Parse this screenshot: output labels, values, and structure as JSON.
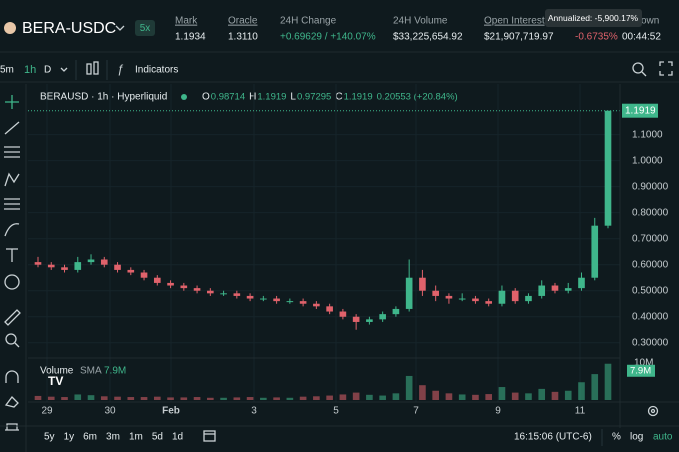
{
  "header": {
    "pair": "BERA-USDC",
    "leverage": "5x",
    "stats": [
      {
        "label": "Mark",
        "value": "1.1934"
      },
      {
        "label": "Oracle",
        "value": "1.3110"
      },
      {
        "label": "24H Change",
        "value": "+0.69629 / +140.07%"
      },
      {
        "label": "24H Volume",
        "value": "$33,225,654.92"
      },
      {
        "label": "Open Interest",
        "value": "$21,907,719.97"
      }
    ],
    "funding_value": "-0.6735%",
    "countdown_label_tail": "own",
    "countdown_value": "00:44:52",
    "tooltip": "Annualized: -5,900.17%"
  },
  "toolbar": {
    "intervals": [
      "5m",
      "1h",
      "D"
    ],
    "indicators": "Indicators"
  },
  "legend": {
    "symbol": "BERAUSD · 1h · Hyperliquid",
    "o_key": "O",
    "o": "0.98714",
    "h_key": "H",
    "h": "1.1919",
    "l_key": "L",
    "l": "0.97295",
    "c_key": "C",
    "c": "1.1919",
    "change": "0.20553 (+20.84%)"
  },
  "chart_data": {
    "type": "candlestick",
    "up_color": "#3fb68b",
    "down_color": "#e0626b",
    "x_labels": [
      "29",
      "30",
      "Feb",
      "3",
      "5",
      "7",
      "9",
      "11"
    ],
    "open": [
      0.61,
      0.6,
      0.59,
      0.58,
      0.61,
      0.62,
      0.6,
      0.58,
      0.57,
      0.55,
      0.53,
      0.52,
      0.51,
      0.5,
      0.49,
      0.49,
      0.48,
      0.47,
      0.47,
      0.46,
      0.46,
      0.45,
      0.44,
      0.42,
      0.4,
      0.38,
      0.39,
      0.41,
      0.43,
      0.55,
      0.5,
      0.48,
      0.47,
      0.47,
      0.46,
      0.45,
      0.5,
      0.46,
      0.48,
      0.52,
      0.5,
      0.51,
      0.55,
      0.75
    ],
    "high": [
      0.63,
      0.61,
      0.6,
      0.63,
      0.64,
      0.63,
      0.61,
      0.59,
      0.58,
      0.56,
      0.54,
      0.53,
      0.52,
      0.51,
      0.5,
      0.5,
      0.49,
      0.48,
      0.48,
      0.47,
      0.47,
      0.46,
      0.45,
      0.43,
      0.41,
      0.4,
      0.42,
      0.44,
      0.62,
      0.58,
      0.52,
      0.49,
      0.49,
      0.48,
      0.47,
      0.52,
      0.51,
      0.49,
      0.54,
      0.53,
      0.53,
      0.57,
      0.78,
      1.1919
    ],
    "low": [
      0.59,
      0.58,
      0.57,
      0.57,
      0.6,
      0.59,
      0.57,
      0.56,
      0.54,
      0.52,
      0.51,
      0.5,
      0.49,
      0.48,
      0.48,
      0.47,
      0.46,
      0.46,
      0.45,
      0.45,
      0.44,
      0.43,
      0.41,
      0.39,
      0.35,
      0.37,
      0.38,
      0.4,
      0.42,
      0.48,
      0.46,
      0.45,
      0.46,
      0.45,
      0.44,
      0.44,
      0.45,
      0.45,
      0.47,
      0.49,
      0.49,
      0.5,
      0.54,
      0.74
    ],
    "close": [
      0.6,
      0.59,
      0.58,
      0.61,
      0.62,
      0.6,
      0.58,
      0.57,
      0.55,
      0.53,
      0.52,
      0.51,
      0.5,
      0.49,
      0.49,
      0.48,
      0.47,
      0.47,
      0.46,
      0.46,
      0.45,
      0.44,
      0.42,
      0.4,
      0.38,
      0.39,
      0.41,
      0.43,
      0.55,
      0.5,
      0.48,
      0.47,
      0.47,
      0.46,
      0.45,
      0.5,
      0.46,
      0.48,
      0.52,
      0.5,
      0.51,
      0.55,
      0.75,
      1.1919
    ],
    "ylim": [
      0.08,
      1.21
    ],
    "yticks": [
      {
        "value": 0.3,
        "label": "0.30000"
      },
      {
        "value": 0.4,
        "label": "0.40000"
      },
      {
        "value": 0.5,
        "label": "0.50000"
      },
      {
        "value": 0.6,
        "label": "0.60000"
      },
      {
        "value": 0.7,
        "label": "0.70000"
      },
      {
        "value": 0.8,
        "label": "0.80000"
      },
      {
        "value": 0.9,
        "label": "0.90000"
      },
      {
        "value": 1.0,
        "label": "1.0000"
      },
      {
        "value": 1.1,
        "label": "1.1000"
      }
    ],
    "volume": {
      "title": "Volume",
      "sma_key": "SMA",
      "sma_value": 7900000,
      "sma_label": "7.9M",
      "values": [
        1100000,
        900000,
        800000,
        1500000,
        1300000,
        1000000,
        900000,
        800000,
        800000,
        900000,
        700000,
        700000,
        800000,
        600000,
        600000,
        700000,
        800000,
        600000,
        700000,
        600000,
        900000,
        1000000,
        1200000,
        1500000,
        2000000,
        1400000,
        1200000,
        1800000,
        6500000,
        4000000,
        2500000,
        1800000,
        1500000,
        1400000,
        1600000,
        3500000,
        2000000,
        1800000,
        3000000,
        2200000,
        2500000,
        4800000,
        7000000,
        9800000
      ],
      "vlim": [
        0,
        10000000
      ],
      "vticks": [
        {
          "value": 10000000,
          "label": "10M"
        }
      ]
    }
  },
  "footer": {
    "ranges": [
      "5y",
      "1y",
      "6m",
      "3m",
      "1m",
      "5d",
      "1d"
    ],
    "time": "16:15:06 (UTC-6)",
    "percent": "%",
    "log": "log",
    "auto": "auto"
  }
}
